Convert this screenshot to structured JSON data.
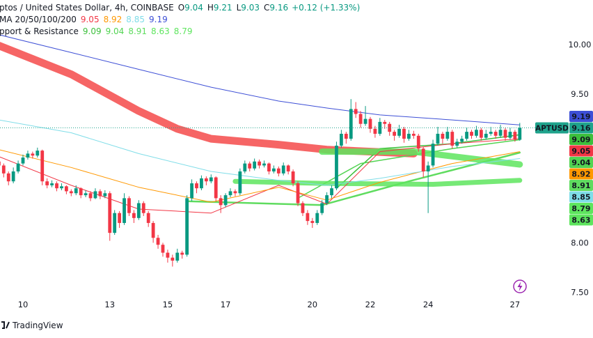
{
  "chart_data": {
    "type": "candlestick",
    "header": {
      "symbol": "ptos / United States Dollar, 4h, COINBASE",
      "open_label": "O",
      "high_label": "H",
      "low_label": "L",
      "close_label": "C",
      "change": "+0.12 (+1.33%)"
    },
    "categories": [
      null,
      null,
      null,
      null,
      null,
      "10",
      null,
      null,
      null,
      null,
      null,
      null,
      null,
      null,
      null,
      null,
      null,
      null,
      null,
      null,
      null,
      null,
      null,
      "13",
      null,
      null,
      null,
      null,
      null,
      null,
      null,
      null,
      null,
      null,
      null,
      "15",
      null,
      null,
      null,
      null,
      null,
      null,
      null,
      null,
      null,
      null,
      null,
      "17",
      null,
      null,
      null,
      null,
      null,
      null,
      null,
      null,
      null,
      null,
      null,
      null,
      null,
      null,
      null,
      null,
      null,
      "20",
      null,
      null,
      null,
      null,
      null,
      null,
      null,
      null,
      null,
      null,
      null,
      "22",
      null,
      null,
      null,
      null,
      null,
      null,
      null,
      null,
      null,
      null,
      null,
      "24",
      null,
      null,
      null,
      null,
      null,
      null,
      null,
      null,
      null,
      null,
      null,
      null,
      null,
      null,
      null,
      null,
      null,
      "27",
      null
    ],
    "candles": [
      [
        8.82,
        8.85,
        8.74,
        8.78
      ],
      [
        8.78,
        8.8,
        8.66,
        8.7
      ],
      [
        8.7,
        8.72,
        8.58,
        8.62
      ],
      [
        8.62,
        8.76,
        8.6,
        8.72
      ],
      [
        8.72,
        8.83,
        8.7,
        8.8
      ],
      [
        8.8,
        8.89,
        8.78,
        8.86
      ],
      [
        8.86,
        8.93,
        8.84,
        8.9
      ],
      [
        8.9,
        8.92,
        8.85,
        8.88
      ],
      [
        8.88,
        8.96,
        8.86,
        8.93
      ],
      [
        8.93,
        8.94,
        8.58,
        8.62
      ],
      [
        8.62,
        8.65,
        8.55,
        8.58
      ],
      [
        8.58,
        8.63,
        8.56,
        8.6
      ],
      [
        8.6,
        8.62,
        8.52,
        8.55
      ],
      [
        8.55,
        8.6,
        8.53,
        8.57
      ],
      [
        8.57,
        8.58,
        8.49,
        8.52
      ],
      [
        8.52,
        8.54,
        8.47,
        8.5
      ],
      [
        8.5,
        8.58,
        8.48,
        8.55
      ],
      [
        8.55,
        8.56,
        8.45,
        8.48
      ],
      [
        8.48,
        8.53,
        8.46,
        8.5
      ],
      [
        8.5,
        8.52,
        8.42,
        8.45
      ],
      [
        8.45,
        8.55,
        8.44,
        8.52
      ],
      [
        8.52,
        8.54,
        8.44,
        8.47
      ],
      [
        8.47,
        8.53,
        8.45,
        8.5
      ],
      [
        8.5,
        8.52,
        8.02,
        8.1
      ],
      [
        8.1,
        8.33,
        8.08,
        8.3
      ],
      [
        8.3,
        8.32,
        8.15,
        8.2
      ],
      [
        8.2,
        8.5,
        8.18,
        8.45
      ],
      [
        8.45,
        8.47,
        8.27,
        8.3
      ],
      [
        8.3,
        8.33,
        8.2,
        8.25
      ],
      [
        8.25,
        8.43,
        8.23,
        8.4
      ],
      [
        8.4,
        8.42,
        8.27,
        8.3
      ],
      [
        8.3,
        8.32,
        8.16,
        8.2
      ],
      [
        8.2,
        8.22,
        8.0,
        8.05
      ],
      [
        8.05,
        8.08,
        7.94,
        7.98
      ],
      [
        7.98,
        8.0,
        7.86,
        7.9
      ],
      [
        7.9,
        7.93,
        7.8,
        7.85
      ],
      [
        7.85,
        7.88,
        7.76,
        7.82
      ],
      [
        7.82,
        7.94,
        7.8,
        7.9
      ],
      [
        7.9,
        7.92,
        7.84,
        7.88
      ],
      [
        7.88,
        8.48,
        7.86,
        8.45
      ],
      [
        8.45,
        8.64,
        8.42,
        8.6
      ],
      [
        8.6,
        8.62,
        8.5,
        8.55
      ],
      [
        8.55,
        8.68,
        8.53,
        8.65
      ],
      [
        8.65,
        8.67,
        8.58,
        8.62
      ],
      [
        8.62,
        8.69,
        8.6,
        8.66
      ],
      [
        8.66,
        8.67,
        8.42,
        8.45
      ],
      [
        8.45,
        8.48,
        8.3,
        8.38
      ],
      [
        8.38,
        8.5,
        8.36,
        8.48
      ],
      [
        8.48,
        8.55,
        8.46,
        8.52
      ],
      [
        8.52,
        8.54,
        8.47,
        8.5
      ],
      [
        8.5,
        8.75,
        8.48,
        8.72
      ],
      [
        8.72,
        8.83,
        8.7,
        8.8
      ],
      [
        8.8,
        8.82,
        8.72,
        8.75
      ],
      [
        8.75,
        8.85,
        8.73,
        8.82
      ],
      [
        8.82,
        8.84,
        8.75,
        8.78
      ],
      [
        8.78,
        8.83,
        8.76,
        8.8
      ],
      [
        8.8,
        8.81,
        8.69,
        8.72
      ],
      [
        8.72,
        8.78,
        8.7,
        8.75
      ],
      [
        8.75,
        8.77,
        8.67,
        8.7
      ],
      [
        8.7,
        8.81,
        8.68,
        8.78
      ],
      [
        8.78,
        8.79,
        8.69,
        8.72
      ],
      [
        8.72,
        8.74,
        8.57,
        8.6
      ],
      [
        8.6,
        8.62,
        8.37,
        8.4
      ],
      [
        8.4,
        8.42,
        8.27,
        8.3
      ],
      [
        8.3,
        8.33,
        8.18,
        8.22
      ],
      [
        8.22,
        8.25,
        8.15,
        8.2
      ],
      [
        8.2,
        8.33,
        8.18,
        8.3
      ],
      [
        8.3,
        8.43,
        8.28,
        8.4
      ],
      [
        8.4,
        8.51,
        8.38,
        8.48
      ],
      [
        8.48,
        8.58,
        8.45,
        8.55
      ],
      [
        8.55,
        9.02,
        8.53,
        8.98
      ],
      [
        8.98,
        9.14,
        8.96,
        9.1
      ],
      [
        9.1,
        9.12,
        9.0,
        9.05
      ],
      [
        9.05,
        9.45,
        9.03,
        9.35
      ],
      [
        9.35,
        9.42,
        9.26,
        9.3
      ],
      [
        9.3,
        9.33,
        9.16,
        9.2
      ],
      [
        9.2,
        9.38,
        9.18,
        9.25
      ],
      [
        9.25,
        9.27,
        9.11,
        9.15
      ],
      [
        9.15,
        9.18,
        9.06,
        9.1
      ],
      [
        9.1,
        9.26,
        9.08,
        9.22
      ],
      [
        9.22,
        9.24,
        9.15,
        9.2
      ],
      [
        9.2,
        9.22,
        9.08,
        9.12
      ],
      [
        9.12,
        9.14,
        9.03,
        9.08
      ],
      [
        9.08,
        9.19,
        9.06,
        9.15
      ],
      [
        9.15,
        9.17,
        9.01,
        9.05
      ],
      [
        9.05,
        9.14,
        9.03,
        9.1
      ],
      [
        9.1,
        9.13,
        9.05,
        9.08
      ],
      [
        9.08,
        9.1,
        8.92,
        8.95
      ],
      [
        8.95,
        8.97,
        8.66,
        8.72
      ],
      [
        8.72,
        8.82,
        8.3,
        8.78
      ],
      [
        8.78,
        9.04,
        8.76,
        9.0
      ],
      [
        9.0,
        9.17,
        8.98,
        9.1
      ],
      [
        9.1,
        9.12,
        9.0,
        9.05
      ],
      [
        9.05,
        9.17,
        9.03,
        9.12
      ],
      [
        9.12,
        9.14,
        8.95,
        8.98
      ],
      [
        8.98,
        9.05,
        8.96,
        9.02
      ],
      [
        9.02,
        9.08,
        9.0,
        9.05
      ],
      [
        9.05,
        9.16,
        9.03,
        9.12
      ],
      [
        9.12,
        9.14,
        9.05,
        9.08
      ],
      [
        9.08,
        9.18,
        9.06,
        9.14
      ],
      [
        9.14,
        9.16,
        9.03,
        9.06
      ],
      [
        9.06,
        9.14,
        9.04,
        9.1
      ],
      [
        9.1,
        9.17,
        9.08,
        9.12
      ],
      [
        9.12,
        9.14,
        9.05,
        9.08
      ],
      [
        9.08,
        9.19,
        9.06,
        9.14
      ],
      [
        9.14,
        9.16,
        9.03,
        9.06
      ],
      [
        9.06,
        9.16,
        9.04,
        9.12
      ],
      [
        9.12,
        9.14,
        9.02,
        9.04
      ],
      [
        9.04,
        9.21,
        9.03,
        9.16
      ]
    ],
    "up_color": "#089981",
    "down_color": "#f23645",
    "ylim": [
      7.44,
      10.45
    ],
    "yticks": [
      {
        "value": 7.5,
        "label": "7.50"
      },
      {
        "value": 8.0,
        "label": "8.00"
      },
      {
        "value": 9.5,
        "label": "9.50"
      },
      {
        "value": 10.0,
        "label": "10.00"
      }
    ],
    "ticker": "APTUSD",
    "last_color": "#1fa38c",
    "trend_lines": [
      {
        "color": "#f44a4a",
        "width": 11,
        "x": [
          0,
          15,
          29,
          37,
          44,
          58,
          68,
          86
        ],
        "values": [
          9.99,
          9.7,
          9.33,
          9.15,
          9.05,
          8.99,
          8.94,
          8.9
        ]
      }
    ],
    "indicators": [
      {
        "name": "MA 20/50/100/200",
        "lines": [
          {
            "color": "#f23645",
            "width": 1,
            "x": [
              0,
              15,
              29,
              44,
              58,
              68,
              79,
              94,
              108
            ],
            "values": [
              8.87,
              8.58,
              8.34,
              8.3,
              8.58,
              8.39,
              8.92,
              9.0,
              9.05
            ]
          },
          {
            "color": "#ff9800",
            "width": 1,
            "x": [
              0,
              15,
              29,
              44,
              58,
              68,
              79,
              94,
              108
            ],
            "values": [
              8.94,
              8.76,
              8.56,
              8.41,
              8.56,
              8.43,
              8.61,
              8.8,
              8.92
            ]
          },
          {
            "color": "#7fdde8",
            "width": 1,
            "x": [
              0,
              15,
              29,
              44,
              58,
              68,
              79,
              94,
              108
            ],
            "values": [
              9.24,
              9.11,
              8.9,
              8.72,
              8.63,
              8.58,
              8.65,
              8.77,
              8.85
            ]
          },
          {
            "color": "#3d4fd6",
            "width": 1,
            "x": [
              0,
              15,
              29,
              44,
              58,
              68,
              79,
              94,
              108
            ],
            "values": [
              10.1,
              9.92,
              9.75,
              9.57,
              9.43,
              9.36,
              9.29,
              9.24,
              9.19
            ]
          }
        ]
      },
      {
        "name": "pport & Resistance",
        "lines": [
          {
            "color": "#3cbf3c",
            "width": 1.5,
            "x": [
              70,
              79,
              94,
              108
            ],
            "values": [
              8.55,
              8.95,
              9.0,
              9.09
            ]
          },
          {
            "color": "#52d452",
            "width": 1.5,
            "x": [
              62,
              75,
              94,
              108
            ],
            "values": [
              8.45,
              8.8,
              8.95,
              9.04
            ]
          },
          {
            "color": "#5fdc5f",
            "width": 2.5,
            "x": [
              39,
              67,
              85,
              108
            ],
            "values": [
              8.42,
              8.38,
              8.62,
              8.91
            ]
          },
          {
            "color": "#5ee55e",
            "width": 7,
            "x": [
              49,
              67,
              90,
              108
            ],
            "values": [
              8.62,
              8.6,
              8.59,
              8.63
            ]
          },
          {
            "color": "#5ee55e",
            "width": 9,
            "x": [
              67,
              86,
              108
            ],
            "values": [
              8.92,
              8.92,
              8.79
            ]
          }
        ]
      }
    ],
    "watermark": "TradingView"
  }
}
